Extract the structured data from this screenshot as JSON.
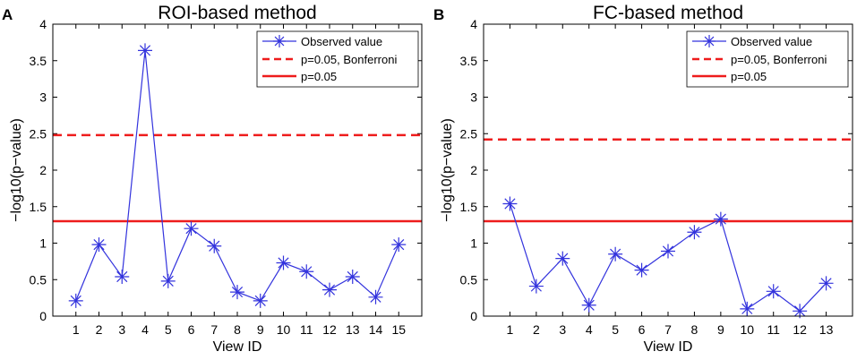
{
  "chart_data": [
    {
      "panel": "A",
      "type": "line",
      "title": "ROI-based method",
      "xlabel": "View ID",
      "ylabel": "−log10(p−value)",
      "x": [
        1,
        2,
        3,
        4,
        5,
        6,
        7,
        8,
        9,
        10,
        11,
        12,
        13,
        14,
        15
      ],
      "xlim": [
        0,
        16
      ],
      "ylim": [
        0,
        4
      ],
      "yticks": [
        "0",
        "0.5",
        "1",
        "1.5",
        "2",
        "2.5",
        "3",
        "3.5",
        "4"
      ],
      "xticks": [
        "1",
        "2",
        "3",
        "4",
        "5",
        "6",
        "7",
        "8",
        "9",
        "10",
        "11",
        "12",
        "13",
        "14",
        "15"
      ],
      "series": [
        {
          "name": "Observed value",
          "values": [
            0.21,
            0.98,
            0.54,
            3.64,
            0.48,
            1.2,
            0.96,
            0.33,
            0.21,
            0.73,
            0.61,
            0.36,
            0.54,
            0.26,
            0.98
          ],
          "color": "#3333dd",
          "style": "line-star"
        }
      ],
      "hlines": [
        {
          "name": "p=0.05, Bonferroni",
          "value": 2.48,
          "color": "#ee1c1c",
          "style": "dashed"
        },
        {
          "name": "p=0.05",
          "value": 1.3,
          "color": "#ee1c1c",
          "style": "solid"
        }
      ],
      "legend": "top-right"
    },
    {
      "panel": "B",
      "type": "line",
      "title": "FC-based method",
      "xlabel": "View ID",
      "ylabel": "−log10(p−value)",
      "x": [
        1,
        2,
        3,
        4,
        5,
        6,
        7,
        8,
        9,
        10,
        11,
        12,
        13
      ],
      "xlim": [
        0,
        14
      ],
      "ylim": [
        0,
        4
      ],
      "yticks": [
        "0",
        "0.5",
        "1",
        "1.5",
        "2",
        "2.5",
        "3",
        "3.5",
        "4"
      ],
      "xticks": [
        "1",
        "2",
        "3",
        "4",
        "5",
        "6",
        "7",
        "8",
        "9",
        "10",
        "11",
        "12",
        "13"
      ],
      "series": [
        {
          "name": "Observed value",
          "values": [
            1.54,
            0.41,
            0.79,
            0.15,
            0.85,
            0.63,
            0.89,
            1.15,
            1.33,
            0.1,
            0.34,
            0.07,
            0.45
          ],
          "color": "#3333dd",
          "style": "line-star"
        }
      ],
      "hlines": [
        {
          "name": "p=0.05, Bonferroni",
          "value": 2.42,
          "color": "#ee1c1c",
          "style": "dashed"
        },
        {
          "name": "p=0.05",
          "value": 1.3,
          "color": "#ee1c1c",
          "style": "solid"
        }
      ],
      "legend": "top-right"
    }
  ]
}
